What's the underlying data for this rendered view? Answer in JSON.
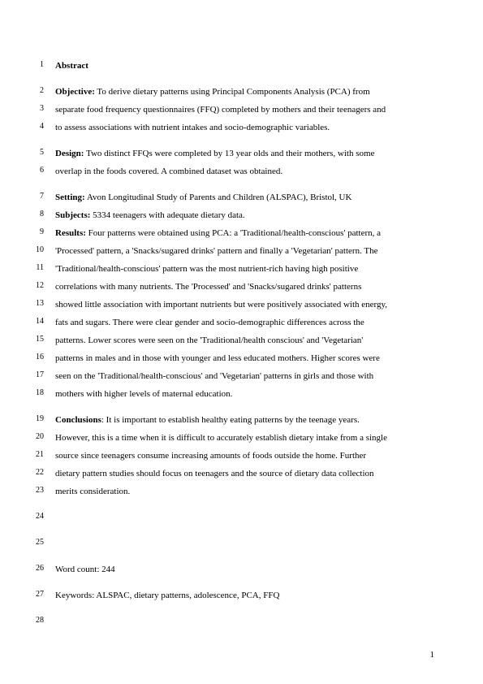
{
  "page": {
    "number": "1",
    "background_color": "#ffffff",
    "text_color": "#000000",
    "font_family": "Times New Roman",
    "body_fontsize": 11,
    "linenum_fontsize": 10,
    "line_height": 2.0
  },
  "lines": [
    {
      "num": "1",
      "bold_lead": "Abstract",
      "text": ""
    },
    {
      "gap": true
    },
    {
      "num": "2",
      "bold_lead": "Objective:",
      "text": " To derive dietary patterns using Principal Components Analysis (PCA) from"
    },
    {
      "num": "3",
      "text": "separate food frequency questionnaires (FFQ) completed by mothers and their teenagers and"
    },
    {
      "num": "4",
      "text": "to assess associations with nutrient intakes and socio-demographic variables."
    },
    {
      "gap": true
    },
    {
      "num": "5",
      "bold_lead": "Design:",
      "text": " Two distinct FFQs were completed by 13 year olds and their mothers, with some"
    },
    {
      "num": "6",
      "text": "overlap in the foods covered. A combined dataset was obtained."
    },
    {
      "gap": true
    },
    {
      "num": "7",
      "bold_lead": "Setting:",
      "text": " Avon Longitudinal Study of Parents and Children (ALSPAC), Bristol, UK"
    },
    {
      "num": "8",
      "bold_lead": "Subjects:",
      "text": " 5334 teenagers with adequate dietary data."
    },
    {
      "num": "9",
      "bold_lead": "Results:",
      "text": " Four patterns were obtained using PCA: a 'Traditional/health-conscious' pattern, a"
    },
    {
      "num": "10",
      "text": "'Processed' pattern, a 'Snacks/sugared drinks' pattern and finally a 'Vegetarian' pattern. The"
    },
    {
      "num": "11",
      "text": "'Traditional/health-conscious' pattern was the most nutrient-rich having high positive"
    },
    {
      "num": "12",
      "text": "correlations with many nutrients. The 'Processed' and 'Snacks/sugared drinks' patterns"
    },
    {
      "num": "13",
      "text": "showed little association with important nutrients but were positively associated with energy,"
    },
    {
      "num": "14",
      "text": "fats and sugars. There were clear gender and socio-demographic differences across the"
    },
    {
      "num": "15",
      "text": "patterns. Lower scores were seen on the 'Traditional/health conscious' and 'Vegetarian'"
    },
    {
      "num": "16",
      "text": "patterns in males and in those with younger and less educated mothers. Higher scores were"
    },
    {
      "num": "17",
      "text": "seen on the 'Traditional/health-conscious' and 'Vegetarian' patterns  in girls and those with"
    },
    {
      "num": "18",
      "text": "mothers with higher levels of  maternal education."
    },
    {
      "gap": true
    },
    {
      "num": "19",
      "bold_lead": "Conclusions",
      "text": ": It is important to establish healthy eating patterns by the teenage years."
    },
    {
      "num": "20",
      "text": "However, this is a time when it is difficult to accurately establish dietary intake from a single"
    },
    {
      "num": "21",
      "text": "source since teenagers consume increasing amounts of foods outside the home. Further"
    },
    {
      "num": "22",
      "text": "dietary pattern studies should focus on teenagers and the source of dietary data collection"
    },
    {
      "num": "23",
      "text": "merits consideration."
    },
    {
      "gap": true
    },
    {
      "num": "24",
      "text": ""
    },
    {
      "gap": true
    },
    {
      "num": "25",
      "text": ""
    },
    {
      "gap": true
    },
    {
      "num": "26",
      "text": "Word count: 244"
    },
    {
      "gap": true
    },
    {
      "num": "27",
      "text": "Keywords: ALSPAC, dietary patterns, adolescence, PCA, FFQ"
    },
    {
      "gap": true
    },
    {
      "num": "28",
      "text": ""
    }
  ]
}
